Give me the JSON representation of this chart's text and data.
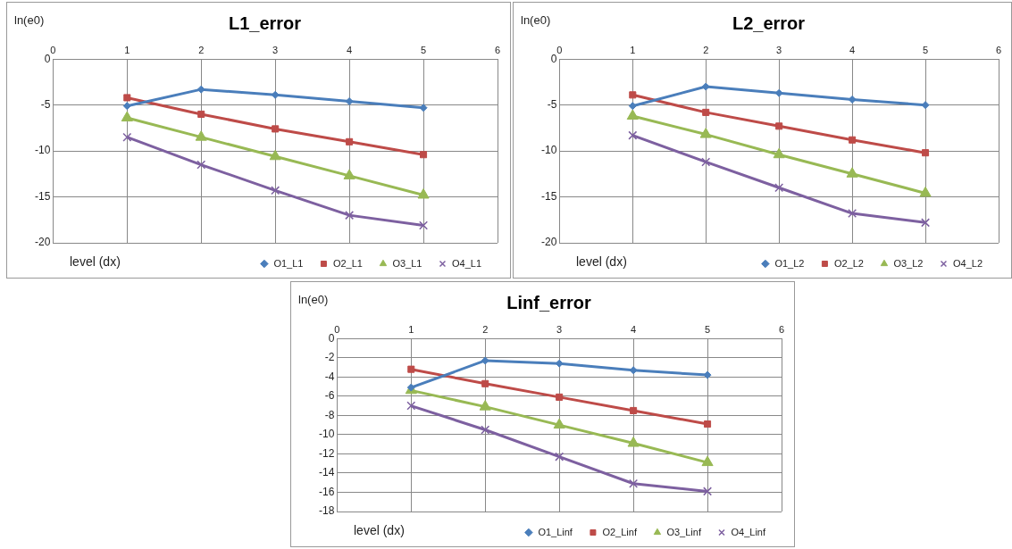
{
  "chart_data": [
    {
      "type": "line",
      "title": "L1_error",
      "xlabel": "level (dx)",
      "ylabel": "ln(e0)",
      "x": [
        1,
        2,
        3,
        4,
        5
      ],
      "xlim": [
        0,
        6
      ],
      "xticks": [
        0,
        1,
        2,
        3,
        4,
        5,
        6
      ],
      "ylim": [
        -20,
        0
      ],
      "yticks": [
        -20,
        -15,
        -10,
        -5,
        0
      ],
      "grid": true,
      "legend": "bottom",
      "series": [
        {
          "name": "O1_L1",
          "color": "#4a7ebb",
          "marker": "diamond",
          "values": [
            -5.1,
            -3.3,
            -3.9,
            -4.6,
            -5.3
          ]
        },
        {
          "name": "O2_L1",
          "color": "#be4b48",
          "marker": "square",
          "values": [
            -4.2,
            -6.0,
            -7.6,
            -9.0,
            -10.4
          ]
        },
        {
          "name": "O3_L1",
          "color": "#98b954",
          "marker": "triangle",
          "values": [
            -6.4,
            -8.5,
            -10.6,
            -12.7,
            -14.8
          ]
        },
        {
          "name": "O4_L1",
          "color": "#7d60a0",
          "marker": "cross",
          "values": [
            -8.5,
            -11.5,
            -14.3,
            -17.0,
            -18.1
          ]
        }
      ]
    },
    {
      "type": "line",
      "title": "L2_error",
      "xlabel": "level (dx)",
      "ylabel": "ln(e0)",
      "x": [
        1,
        2,
        3,
        4,
        5
      ],
      "xlim": [
        0,
        6
      ],
      "xticks": [
        0,
        1,
        2,
        3,
        4,
        5,
        6
      ],
      "ylim": [
        -20,
        0
      ],
      "yticks": [
        -20,
        -15,
        -10,
        -5,
        0
      ],
      "grid": true,
      "legend": "bottom",
      "series": [
        {
          "name": "O1_L2",
          "color": "#4a7ebb",
          "marker": "diamond",
          "values": [
            -5.1,
            -3.0,
            -3.7,
            -4.4,
            -5.0
          ]
        },
        {
          "name": "O2_L2",
          "color": "#be4b48",
          "marker": "square",
          "values": [
            -3.9,
            -5.8,
            -7.3,
            -8.8,
            -10.2
          ]
        },
        {
          "name": "O3_L2",
          "color": "#98b954",
          "marker": "triangle",
          "values": [
            -6.2,
            -8.2,
            -10.4,
            -12.5,
            -14.6
          ]
        },
        {
          "name": "O4_L2",
          "color": "#7d60a0",
          "marker": "cross",
          "values": [
            -8.3,
            -11.2,
            -14.0,
            -16.8,
            -17.8
          ]
        }
      ]
    },
    {
      "type": "line",
      "title": "Linf_error",
      "xlabel": "level (dx)",
      "ylabel": "ln(e0)",
      "x": [
        1,
        2,
        3,
        4,
        5
      ],
      "xlim": [
        0,
        6
      ],
      "xticks": [
        0,
        1,
        2,
        3,
        4,
        5,
        6
      ],
      "ylim": [
        -18,
        0
      ],
      "yticks": [
        -18,
        -16,
        -14,
        -12,
        -10,
        -8,
        -6,
        -4,
        -2,
        0
      ],
      "grid": true,
      "legend": "bottom",
      "series": [
        {
          "name": "O1_Linf",
          "color": "#4a7ebb",
          "marker": "diamond",
          "values": [
            -5.1,
            -2.3,
            -2.6,
            -3.3,
            -3.8
          ]
        },
        {
          "name": "O2_Linf",
          "color": "#be4b48",
          "marker": "square",
          "values": [
            -3.2,
            -4.7,
            -6.1,
            -7.5,
            -8.9
          ]
        },
        {
          "name": "O3_Linf",
          "color": "#98b954",
          "marker": "triangle",
          "values": [
            -5.4,
            -7.1,
            -9.0,
            -10.9,
            -12.9
          ]
        },
        {
          "name": "O4_Linf",
          "color": "#7d60a0",
          "marker": "cross",
          "values": [
            -7.0,
            -9.5,
            -12.3,
            -15.1,
            -15.9
          ]
        }
      ]
    }
  ]
}
